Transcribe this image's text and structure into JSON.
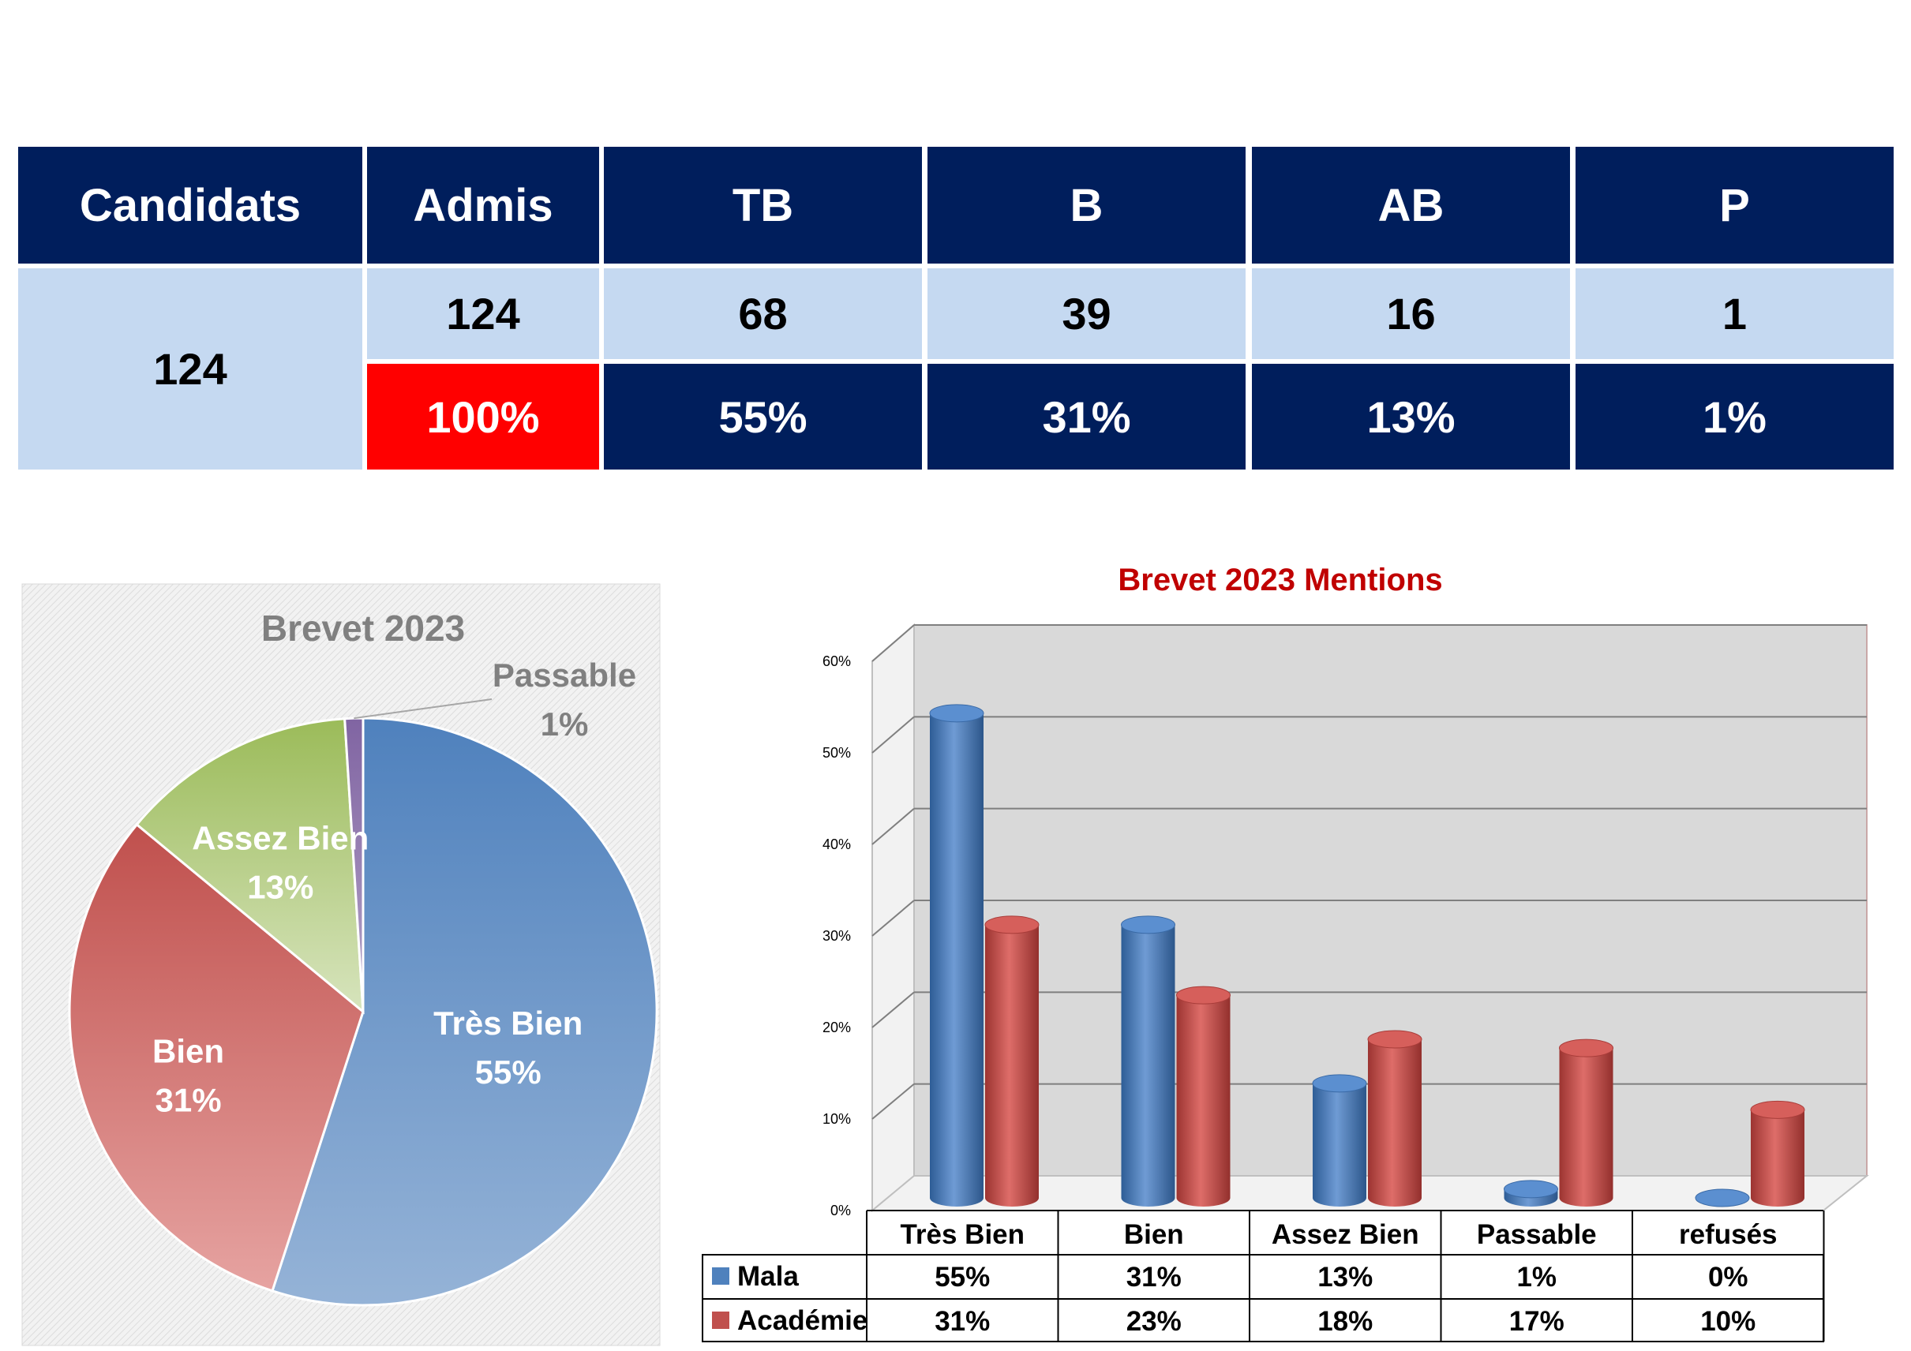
{
  "table": {
    "headers": [
      "Candidats",
      "Admis",
      "TB",
      "B",
      "AB",
      "P"
    ],
    "candidats": "124",
    "counts": [
      "124",
      "68",
      "39",
      "16",
      "1"
    ],
    "percents": [
      "100%",
      "55%",
      "31%",
      "13%",
      "1%"
    ]
  },
  "chart_data": [
    {
      "type": "pie",
      "title": "Brevet 2023",
      "slices": [
        {
          "label": "Très Bien",
          "value": 55,
          "value_label": "55%",
          "color": "#4f81bd"
        },
        {
          "label": "Bien",
          "value": 31,
          "value_label": "31%",
          "color": "#c0504d"
        },
        {
          "label": "Assez Bien",
          "value": 13,
          "value_label": "13%",
          "color": "#9bbb59"
        },
        {
          "label": "Passable",
          "value": 1,
          "value_label": "1%",
          "color": "#8064a2"
        }
      ]
    },
    {
      "type": "bar",
      "title": "Brevet 2023  Mentions",
      "categories": [
        "Très Bien",
        "Bien",
        "Assez Bien",
        "Passable",
        "refusés"
      ],
      "series": [
        {
          "name": "Mala",
          "values": [
            55,
            31,
            13,
            1,
            0
          ],
          "labels": [
            "55%",
            "31%",
            "13%",
            "1%",
            "0%"
          ],
          "color": "#4f81bd"
        },
        {
          "name": "Académie",
          "values": [
            31,
            23,
            18,
            17,
            10
          ],
          "labels": [
            "31%",
            "23%",
            "18%",
            "17%",
            "10%"
          ],
          "color": "#c0504d"
        }
      ],
      "yticks": [
        "0%",
        "10%",
        "20%",
        "30%",
        "40%",
        "50%",
        "60%"
      ],
      "ylim": [
        0,
        60
      ],
      "grid": true,
      "legend": "data-table"
    }
  ]
}
